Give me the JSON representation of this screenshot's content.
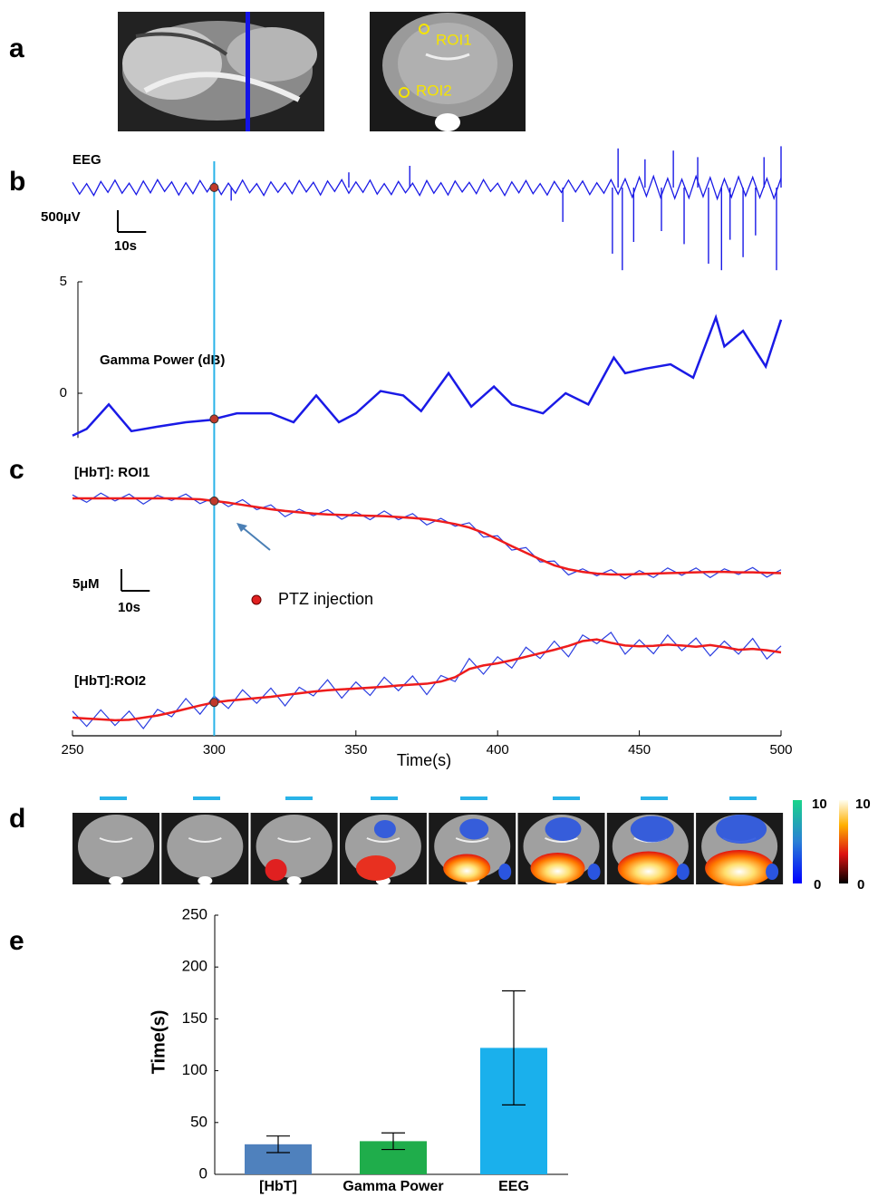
{
  "panels": [
    "a",
    "b",
    "c",
    "d",
    "e"
  ],
  "panel_a": {
    "roi_labels": [
      "ROI1",
      "ROI2"
    ]
  },
  "panel_d": {
    "colorbars": [
      {
        "max": 10,
        "min": 0
      },
      {
        "max": 10,
        "min": 0
      }
    ]
  },
  "chart_data": [
    {
      "type": "eeg",
      "title": "EEG",
      "color": "#1a1ae6",
      "scale_bar": {
        "y": {
          "value": 500,
          "label": "500µV"
        },
        "x": {
          "value": 10,
          "label": "10s"
        }
      },
      "x": [
        250,
        252.5,
        255,
        257.5,
        260,
        262.5,
        265,
        267.5,
        270,
        272.5,
        275,
        277.5,
        280,
        282.5,
        285,
        287.5,
        290,
        292.5,
        295,
        297.5,
        300,
        302.5,
        305,
        307.5,
        310,
        312.5,
        315,
        317.5,
        320,
        322.5,
        325,
        327.5,
        330,
        332.5,
        335,
        337.5,
        340,
        342.5,
        345,
        347.5,
        350,
        352.5,
        355,
        357.5,
        360,
        362.5,
        365,
        367.5,
        370,
        372.5,
        375,
        377.5,
        380,
        382.5,
        385,
        387.5,
        390,
        392.5,
        395,
        397.5,
        400,
        402.5,
        405,
        407.5,
        410,
        412.5,
        415,
        417.5,
        420,
        422.5,
        425,
        427.5,
        430,
        432.5,
        435,
        437.5,
        440,
        442.5,
        445,
        447.5,
        450,
        452.5,
        455,
        457.5,
        460,
        462.5,
        465,
        467.5,
        470,
        472.5,
        475,
        477.5,
        480,
        482.5,
        485,
        487.5,
        490,
        492.5,
        495,
        497.5,
        500
      ],
      "values": [
        120,
        -150,
        90,
        -180,
        140,
        -110,
        170,
        -130,
        100,
        -160,
        150,
        -120,
        180,
        -90,
        130,
        -170,
        110,
        -140,
        160,
        -100,
        140,
        -160,
        100,
        -130,
        170,
        -120,
        90,
        -180,
        130,
        -110,
        110,
        -140,
        160,
        -100,
        120,
        -170,
        150,
        -90,
        180,
        -130,
        130,
        -110,
        170,
        -150,
        90,
        -160,
        140,
        -120,
        100,
        -180,
        160,
        -130,
        110,
        -170,
        150,
        -100,
        120,
        -140,
        180,
        -90,
        100,
        -180,
        130,
        -120,
        160,
        -140,
        90,
        -170,
        140,
        -110,
        170,
        -100,
        150,
        -160,
        110,
        -130,
        180,
        -150,
        200,
        -220,
        240,
        -200,
        260,
        -230,
        210,
        -250,
        190,
        -240,
        260,
        -210,
        230,
        -260,
        200,
        -220,
        250,
        -190,
        240,
        -230,
        210,
        -250,
        220
      ],
      "spikes": {
        "x": [
          306,
          347.5,
          369,
          423,
          440.5,
          442.5,
          444,
          448,
          452,
          457.8,
          462,
          465.8,
          470.6,
          474.4,
          479,
          482,
          486.6,
          491,
          494,
          498.4,
          500
        ],
        "values": [
          -300,
          350,
          500,
          -790,
          -1520,
          900,
          -1900,
          -1250,
          650,
          -1000,
          850,
          -1300,
          700,
          -1750,
          -1900,
          -1200,
          -1600,
          -1100,
          700,
          -1900,
          950
        ]
      }
    },
    {
      "type": "line",
      "title": "Gamma Power (dB)",
      "color": "#1a1ae6",
      "ylim": [
        -2,
        5
      ],
      "yticks": [
        0,
        5
      ],
      "x": [
        250,
        255,
        262.8,
        270.8,
        280,
        290,
        298.6,
        308,
        320,
        328,
        336,
        344,
        350,
        358.7,
        366.7,
        373,
        382.7,
        390.7,
        398.7,
        405,
        416,
        424,
        432,
        441,
        445,
        452,
        461,
        469,
        477,
        480,
        486.6,
        494.6,
        500
      ],
      "values": [
        -1.9,
        -1.6,
        -0.5,
        -1.7,
        -1.5,
        -1.3,
        -1.2,
        -0.9,
        -0.9,
        -1.3,
        -0.1,
        -1.3,
        -0.9,
        0.1,
        -0.1,
        -0.8,
        0.9,
        -0.6,
        0.3,
        -0.5,
        -0.9,
        0,
        -0.5,
        1.6,
        0.9,
        1.1,
        1.3,
        0.7,
        3.4,
        2.1,
        2.8,
        1.2,
        3.3
      ]
    },
    {
      "type": "hbt",
      "xlabel": "Time(s)",
      "xlim": [
        250,
        500
      ],
      "xticks": [
        250,
        300,
        350,
        400,
        450,
        500
      ],
      "raw_color": "#2b3de0",
      "smoothed_color": "#ee1c1c",
      "scale_bar": {
        "y": {
          "value": 5,
          "label": "5µM"
        },
        "x": {
          "value": 10,
          "label": "10s"
        }
      },
      "event": {
        "x": 300,
        "label": "PTZ injection"
      },
      "x": [
        250,
        255,
        260,
        265,
        270,
        275,
        280,
        285,
        290,
        295,
        300,
        305,
        310,
        315,
        320,
        325,
        330,
        335,
        340,
        345,
        350,
        355,
        360,
        365,
        370,
        375,
        380,
        385,
        390,
        395,
        400,
        405,
        410,
        415,
        420,
        425,
        430,
        435,
        440,
        445,
        450,
        455,
        460,
        465,
        470,
        475,
        480,
        485,
        490,
        495,
        500
      ],
      "series": [
        {
          "name": "[HbT]: ROI1",
          "raw": [
            0.8,
            -0.9,
            1.2,
            -0.6,
            1.0,
            -1.3,
            0.7,
            -0.5,
            1.0,
            -1.2,
            0.2,
            -1.9,
            -0.3,
            -2.6,
            -1.5,
            -4.2,
            -2.5,
            -4.0,
            -2.6,
            -4.8,
            -3.1,
            -4.9,
            -2.9,
            -4.9,
            -3.5,
            -6.1,
            -4.6,
            -6.4,
            -5.6,
            -8.9,
            -8.6,
            -11.9,
            -11.3,
            -14.6,
            -14.4,
            -17.6,
            -16.2,
            -17.8,
            -16.4,
            -18.5,
            -16.6,
            -18.2,
            -16.0,
            -17.7,
            -16.0,
            -18.2,
            -16.2,
            -17.5,
            -15.9,
            -18.1,
            -16.4
          ],
          "smoothed": [
            0,
            0,
            0,
            0,
            0,
            0,
            0,
            0,
            -0.1,
            -0.2,
            -0.6,
            -1.0,
            -1.5,
            -2.0,
            -2.5,
            -2.9,
            -3.2,
            -3.5,
            -3.7,
            -3.8,
            -3.9,
            -4.0,
            -4.1,
            -4.3,
            -4.5,
            -4.8,
            -5.3,
            -5.9,
            -6.7,
            -7.9,
            -9.4,
            -11.0,
            -12.5,
            -14.0,
            -15.4,
            -16.3,
            -16.9,
            -17.3,
            -17.5,
            -17.5,
            -17.4,
            -17.3,
            -17.2,
            -17.1,
            -17.0,
            -16.9,
            -16.9,
            -17.0,
            -17.0,
            -17.1,
            -17.2
          ]
        },
        {
          "name": "[HbT]:ROI2",
          "raw": [
            1.5,
            -2.0,
            1.8,
            -1.8,
            1.5,
            -2.5,
            1.9,
            0.2,
            4.4,
            0.8,
            5.0,
            2.1,
            6.4,
            3.3,
            6.8,
            2.7,
            7.0,
            5.0,
            8.7,
            4.5,
            8.2,
            5.1,
            9.3,
            6.2,
            9.6,
            5.3,
            9.7,
            8.3,
            13.6,
            10.0,
            14.0,
            11.4,
            16.2,
            13.6,
            17.6,
            14.0,
            19.0,
            17.0,
            19.6,
            14.6,
            17.9,
            14.7,
            19.0,
            15.4,
            18.3,
            14.2,
            17.6,
            14.6,
            18.2,
            13.5,
            16.5
          ],
          "smoothed": [
            0,
            -0.2,
            -0.4,
            -0.6,
            -0.5,
            0,
            0.5,
            1.2,
            2.0,
            2.8,
            3.5,
            3.9,
            4.2,
            4.5,
            4.8,
            5.2,
            5.6,
            6.0,
            6.3,
            6.5,
            6.7,
            6.9,
            7.1,
            7.4,
            7.6,
            7.8,
            8.3,
            9.3,
            11.2,
            12.0,
            12.5,
            13.2,
            14.0,
            14.8,
            15.6,
            16.5,
            17.6,
            18.0,
            17.2,
            16.6,
            16.4,
            16.5,
            16.8,
            16.6,
            16.3,
            16.7,
            16.2,
            15.6,
            15.8,
            15.5,
            15.0
          ]
        }
      ]
    },
    {
      "type": "bar",
      "ylabel": "Time(s)",
      "ylim": [
        0,
        250
      ],
      "yticks": [
        0,
        50,
        100,
        150,
        200,
        250
      ],
      "categories": [
        "[HbT]",
        "Gamma Power",
        "EEG"
      ],
      "values": [
        29,
        32,
        122
      ],
      "errors": [
        8,
        8,
        55
      ],
      "colors": [
        "#4f81bd",
        "#1fad4b",
        "#1ab0ec"
      ]
    }
  ]
}
